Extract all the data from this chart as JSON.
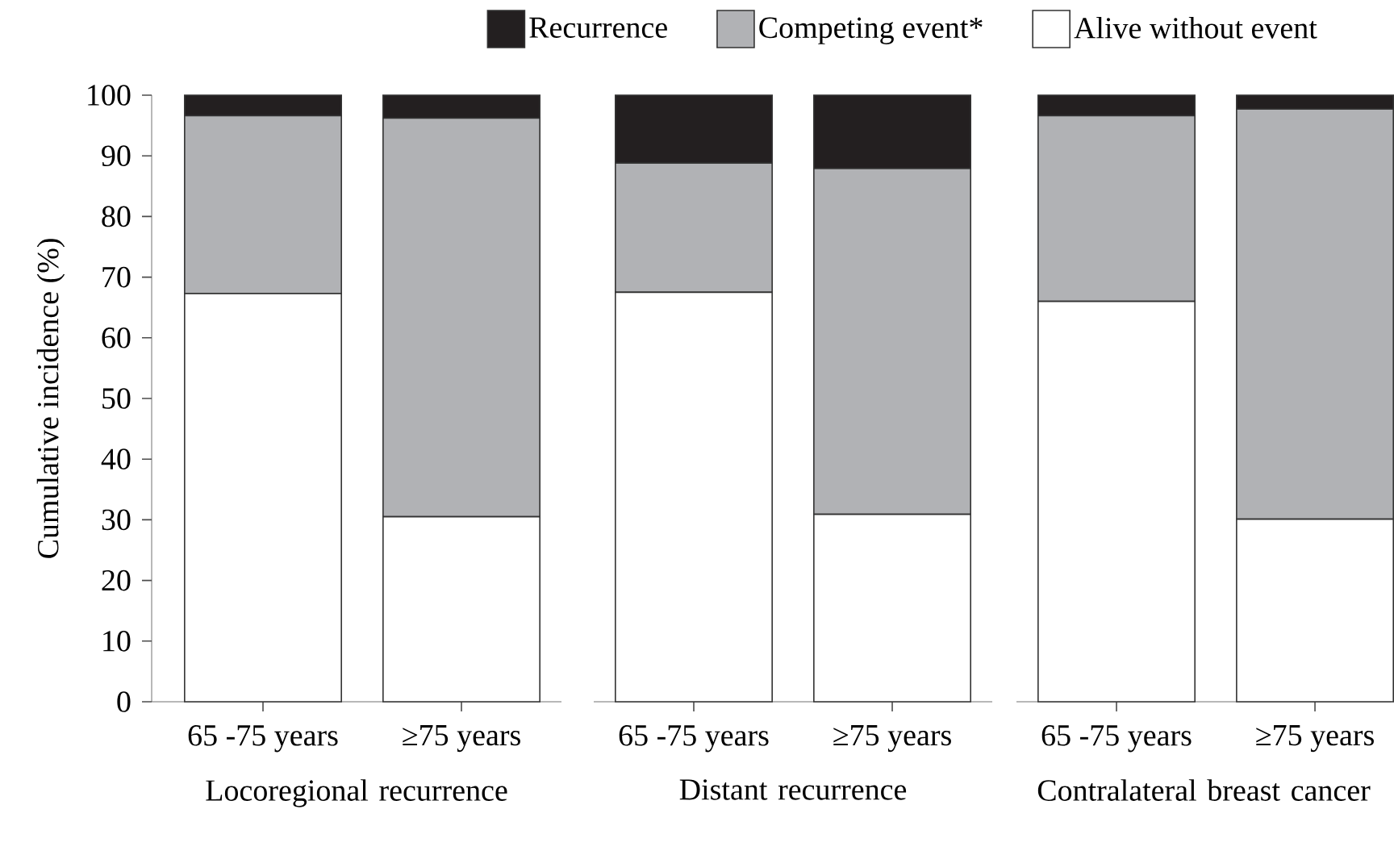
{
  "chart_data": [
    {
      "type": "bar",
      "stacked": true,
      "categories": [
        "65 -75 years",
        "≥75 years"
      ],
      "xlabel": "Locoregional recurrence",
      "ylabel": "Cumulative incidence (%)",
      "ylim": [
        0,
        100
      ],
      "yticks": [
        0,
        10,
        20,
        30,
        40,
        50,
        60,
        70,
        80,
        90,
        100
      ],
      "legend": "top",
      "series": [
        {
          "name": "Alive without event",
          "color": "#ffffff",
          "values": [
            67.3,
            30.5
          ]
        },
        {
          "name": "Competing event*",
          "color": "#b1b2b5",
          "values": [
            29.3,
            65.7
          ]
        },
        {
          "name": "Recurrence",
          "color": "#231f20",
          "values": [
            3.4,
            3.8
          ]
        }
      ]
    },
    {
      "type": "bar",
      "stacked": true,
      "categories": [
        "65 -75 years",
        "≥75 years"
      ],
      "xlabel": "Distant recurrence",
      "ylim": [
        0,
        100
      ],
      "tick_labels": "x",
      "series": [
        {
          "color": "#ffffff",
          "values": [
            67.5,
            30.9
          ]
        },
        {
          "color": "#b1b2b5",
          "values": [
            21.3,
            57.0
          ]
        },
        {
          "color": "#231f20",
          "values": [
            11.2,
            12.1
          ]
        }
      ]
    },
    {
      "type": "bar",
      "stacked": true,
      "categories": [
        "65 -75 years",
        "≥75 years"
      ],
      "xlabel": "Contralateral breast cancer",
      "ylim": [
        0,
        100
      ],
      "tick_labels": "x",
      "series": [
        {
          "color": "#ffffff",
          "values": [
            66.0,
            30.1
          ]
        },
        {
          "color": "#b1b2b5",
          "values": [
            30.6,
            67.6
          ]
        },
        {
          "color": "#231f20",
          "values": [
            3.4,
            2.3
          ]
        }
      ]
    }
  ]
}
